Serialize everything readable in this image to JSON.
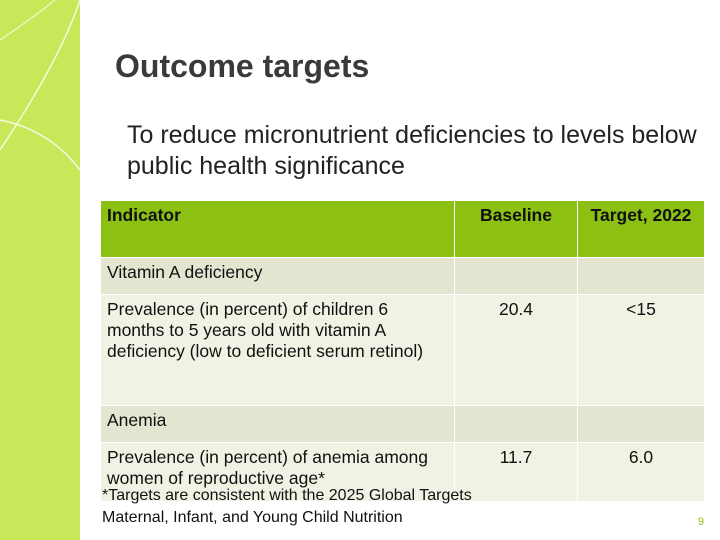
{
  "slide": {
    "title": "Outcome targets",
    "subtitle": "To reduce micronutrient deficiencies to levels below public health significance",
    "page_number": "9",
    "footnote": "*Targets are consistent with the 2025 Global Targets Maternal, Infant, and Young Child Nutrition"
  },
  "table": {
    "headers": [
      "Indicator",
      "Baseline",
      "Target, 2022"
    ],
    "sections": [
      {
        "label": "Vitamin A deficiency",
        "indicator": "Prevalence (in percent) of children 6 months to 5 years old with vitamin A deficiency (low to deficient serum retinol)",
        "baseline": "20.4",
        "target": "<15"
      },
      {
        "label": "Anemia",
        "indicator": "Prevalence (in percent) of anemia among women of reproductive age*",
        "baseline": "11.7",
        "target": "6.0"
      }
    ]
  },
  "colors": {
    "accent_green": "#8cc012",
    "side_band": "#c8e85a",
    "section_row": "#e4e5d0",
    "data_row": "#f1f2e3"
  }
}
